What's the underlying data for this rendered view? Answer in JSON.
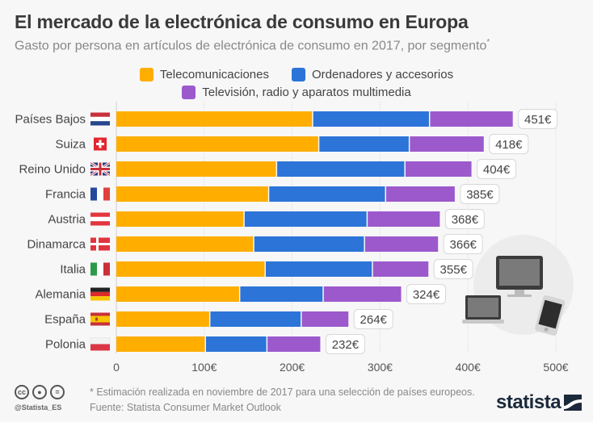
{
  "header": {
    "title": "El mercado de la electrónica de consumo en Europa",
    "subtitle": "Gasto por persona en artículos de electrónica de consumo en 2017, por segmento",
    "subtitle_mark": "*"
  },
  "legend": {
    "items": [
      {
        "label": "Telecomunicaciones",
        "color": "#FFAE00"
      },
      {
        "label": "Ordenadores y accesorios",
        "color": "#2C74D8"
      },
      {
        "label": "Televisión, radio y aparatos multimedia",
        "color": "#9C59CC"
      }
    ]
  },
  "chart_data": {
    "type": "bar",
    "orientation": "horizontal",
    "stacked": true,
    "title": "El mercado de la electrónica de consumo en Europa",
    "subtitle": "Gasto por persona en artículos de electrónica de consumo en 2017, por segmento*",
    "xlabel": "",
    "ylabel": "",
    "categories": [
      "Países Bajos",
      "Suiza",
      "Reino Unido",
      "Francia",
      "Austria",
      "Dinamarca",
      "Italia",
      "Alemania",
      "España",
      "Polonia"
    ],
    "flags": [
      "nl",
      "ch",
      "gb",
      "fr",
      "at",
      "dk",
      "it",
      "de",
      "es",
      "pl"
    ],
    "series": [
      {
        "name": "Telecomunicaciones",
        "color": "#FFAE00",
        "values": [
          224,
          231,
          183,
          174,
          146,
          157,
          170,
          141,
          107,
          102
        ]
      },
      {
        "name": "Ordenadores y accesorios",
        "color": "#2C74D8",
        "values": [
          133,
          103,
          146,
          133,
          140,
          126,
          122,
          95,
          104,
          70
        ]
      },
      {
        "name": "Televisión, radio y aparatos multimedia",
        "color": "#9C59CC",
        "values": [
          94,
          84,
          75,
          78,
          82,
          83,
          63,
          88,
          53,
          60
        ]
      }
    ],
    "totals": [
      451,
      418,
      404,
      385,
      368,
      366,
      355,
      324,
      264,
      232
    ],
    "total_labels": [
      "451€",
      "418€",
      "404€",
      "385€",
      "368€",
      "366€",
      "355€",
      "324€",
      "264€",
      "232€"
    ],
    "xlim": [
      0,
      500
    ],
    "xticks": [
      0,
      100,
      200,
      300,
      400,
      500
    ],
    "xtick_labels": [
      "0",
      "100€",
      "200€",
      "300€",
      "400€",
      "500€"
    ],
    "grid": true,
    "legend_position": "top-center"
  },
  "footer": {
    "footnote": "* Estimación realizada en noviembre de 2017 para una selección de países europeos.",
    "source": "Fuente: Statista Consumer Market Outlook",
    "handle": "@Statista_ES",
    "cc_icons": [
      "cc",
      "by",
      "nd"
    ],
    "logo_text": "statista"
  },
  "illustration": {
    "icons": [
      "desktop-monitor-icon",
      "laptop-icon",
      "smartphone-icon"
    ]
  }
}
